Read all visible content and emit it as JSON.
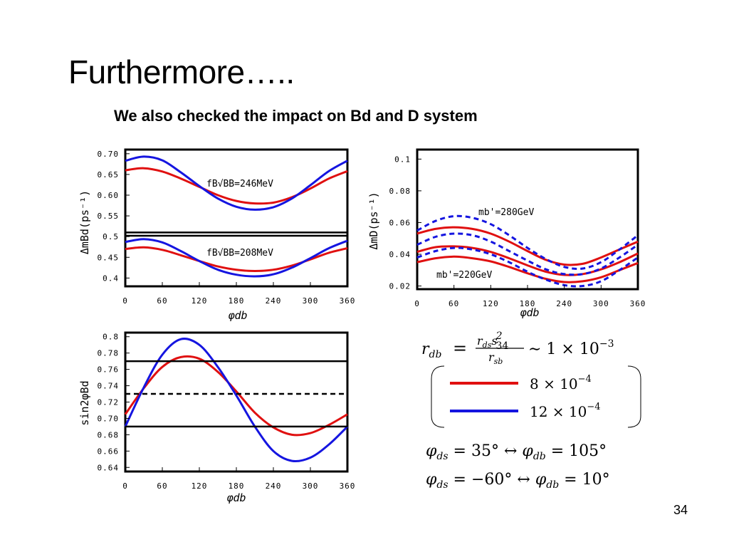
{
  "slide": {
    "title": "Furthermore…..",
    "subtitle": "We also checked the impact on  Bd and D system",
    "page_number": "34"
  },
  "colors": {
    "red": "#e01010",
    "blue": "#1515e0",
    "black": "#000000"
  },
  "chart_data": [
    {
      "type": "line",
      "title": "",
      "xlabel": "φdb",
      "ylabel": "ΔmBd(ps⁻¹)",
      "xlim": [
        0,
        360
      ],
      "ylim": [
        0.38,
        0.71
      ],
      "xticks": [
        "0",
        "60",
        "120",
        "180",
        "240",
        "300",
        "360"
      ],
      "yticks": [
        "0.70",
        "0.65",
        "0.60",
        "0.55",
        "0.5",
        "0.45",
        "0.4"
      ],
      "annotations": [
        "fB√BB=246MeV",
        "fB√BB=208MeV"
      ],
      "series": [
        {
          "color": "red",
          "style": "solid",
          "x": [
            0,
            30,
            60,
            90,
            120,
            150,
            180,
            210,
            240,
            270,
            300,
            330,
            360
          ],
          "y": [
            0.66,
            0.665,
            0.657,
            0.64,
            0.62,
            0.6,
            0.586,
            0.58,
            0.582,
            0.595,
            0.616,
            0.64,
            0.658
          ]
        },
        {
          "color": "blue",
          "style": "solid",
          "x": [
            0,
            30,
            60,
            90,
            120,
            150,
            180,
            210,
            240,
            270,
            300,
            330,
            360
          ],
          "y": [
            0.683,
            0.693,
            0.684,
            0.655,
            0.622,
            0.592,
            0.572,
            0.565,
            0.571,
            0.592,
            0.624,
            0.658,
            0.683
          ]
        },
        {
          "color": "red",
          "style": "solid",
          "x": [
            0,
            30,
            60,
            90,
            120,
            150,
            180,
            210,
            240,
            270,
            300,
            330,
            360
          ],
          "y": [
            0.47,
            0.474,
            0.468,
            0.455,
            0.441,
            0.428,
            0.42,
            0.417,
            0.42,
            0.43,
            0.445,
            0.461,
            0.472
          ]
        },
        {
          "color": "blue",
          "style": "solid",
          "x": [
            0,
            30,
            60,
            90,
            120,
            150,
            180,
            210,
            240,
            270,
            300,
            330,
            360
          ],
          "y": [
            0.487,
            0.494,
            0.486,
            0.465,
            0.441,
            0.42,
            0.408,
            0.404,
            0.409,
            0.425,
            0.448,
            0.472,
            0.49
          ]
        },
        {
          "color": "black",
          "style": "solid",
          "x": [
            0,
            360
          ],
          "y": [
            0.51,
            0.51
          ]
        },
        {
          "color": "black",
          "style": "solid",
          "x": [
            0,
            360
          ],
          "y": [
            0.502,
            0.502
          ]
        }
      ]
    },
    {
      "type": "line",
      "title": "",
      "xlabel": "φdb",
      "ylabel": "ΔmD(ps⁻¹)",
      "xlim": [
        0,
        360
      ],
      "ylim": [
        0.018,
        0.106
      ],
      "xticks": [
        "0",
        "60",
        "120",
        "180",
        "240",
        "300",
        "360"
      ],
      "yticks": [
        "0.1",
        "0.08",
        "0.06",
        "0.04",
        "0.02"
      ],
      "annotations": [
        "mb'=280GeV",
        "mb'=220GeV"
      ],
      "series": [
        {
          "color": "red",
          "style": "solid",
          "x": [
            0,
            30,
            60,
            90,
            120,
            150,
            180,
            210,
            240,
            270,
            300,
            330,
            360
          ],
          "y": [
            0.053,
            0.056,
            0.057,
            0.056,
            0.053,
            0.048,
            0.042,
            0.0365,
            0.0335,
            0.034,
            0.038,
            0.043,
            0.048
          ]
        },
        {
          "color": "red",
          "style": "solid",
          "x": [
            0,
            30,
            60,
            90,
            120,
            150,
            180,
            210,
            240,
            270,
            300,
            330,
            360
          ],
          "y": [
            0.0415,
            0.0445,
            0.045,
            0.044,
            0.0415,
            0.0375,
            0.033,
            0.029,
            0.027,
            0.0275,
            0.0305,
            0.035,
            0.0405
          ]
        },
        {
          "color": "red",
          "style": "solid",
          "x": [
            0,
            30,
            60,
            90,
            120,
            150,
            180,
            210,
            240,
            270,
            300,
            330,
            360
          ],
          "y": [
            0.035,
            0.0375,
            0.0385,
            0.0375,
            0.0355,
            0.032,
            0.028,
            0.0245,
            0.0225,
            0.023,
            0.0255,
            0.03,
            0.0345
          ]
        },
        {
          "color": "blue",
          "style": "dashed",
          "x": [
            0,
            30,
            60,
            90,
            120,
            150,
            180,
            210,
            240,
            270,
            300,
            330,
            360
          ],
          "y": [
            0.055,
            0.061,
            0.064,
            0.063,
            0.059,
            0.052,
            0.044,
            0.037,
            0.032,
            0.031,
            0.035,
            0.043,
            0.052
          ]
        },
        {
          "color": "blue",
          "style": "dashed",
          "x": [
            0,
            30,
            60,
            90,
            120,
            150,
            180,
            210,
            240,
            270,
            300,
            330,
            360
          ],
          "y": [
            0.046,
            0.051,
            0.053,
            0.052,
            0.048,
            0.042,
            0.036,
            0.0305,
            0.0275,
            0.0275,
            0.031,
            0.038,
            0.046
          ]
        },
        {
          "color": "blue",
          "style": "dashed",
          "x": [
            0,
            30,
            60,
            90,
            120,
            150,
            180,
            210,
            240,
            270,
            300,
            330,
            360
          ],
          "y": [
            0.038,
            0.042,
            0.044,
            0.043,
            0.04,
            0.035,
            0.029,
            0.024,
            0.0205,
            0.02,
            0.023,
            0.03,
            0.038
          ]
        }
      ]
    },
    {
      "type": "line",
      "title": "",
      "xlabel": "φdb",
      "ylabel": "sin2φBd",
      "xlim": [
        0,
        360
      ],
      "ylim": [
        0.635,
        0.805
      ],
      "xticks": [
        "0",
        "60",
        "120",
        "180",
        "240",
        "300",
        "360"
      ],
      "yticks": [
        "0.8",
        "0.78",
        "0.76",
        "0.74",
        "0.72",
        "0.70",
        "0.68",
        "0.66",
        "0.64"
      ],
      "series": [
        {
          "color": "red",
          "style": "solid",
          "x": [
            0,
            30,
            60,
            90,
            120,
            150,
            180,
            210,
            240,
            270,
            300,
            330,
            360
          ],
          "y": [
            0.705,
            0.737,
            0.763,
            0.775,
            0.773,
            0.757,
            0.733,
            0.707,
            0.689,
            0.68,
            0.682,
            0.692,
            0.705
          ]
        },
        {
          "color": "blue",
          "style": "solid",
          "x": [
            0,
            30,
            60,
            90,
            120,
            150,
            180,
            210,
            240,
            270,
            300,
            330,
            360
          ],
          "y": [
            0.69,
            0.738,
            0.778,
            0.797,
            0.79,
            0.763,
            0.728,
            0.69,
            0.66,
            0.648,
            0.652,
            0.668,
            0.69
          ]
        },
        {
          "color": "black",
          "style": "solid",
          "x": [
            0,
            360
          ],
          "y": [
            0.77,
            0.77
          ]
        },
        {
          "color": "black",
          "style": "dashed",
          "x": [
            0,
            360
          ],
          "y": [
            0.73,
            0.73
          ]
        },
        {
          "color": "black",
          "style": "solid",
          "x": [
            0,
            360
          ],
          "y": [
            0.69,
            0.69
          ]
        }
      ]
    }
  ],
  "legend": {
    "formula": {
      "lhs": "r",
      "lhs_sub": "db",
      "num": "r",
      "num_sub": "ds",
      "num_s": "s",
      "num_s_sup": "2",
      "num_s_sub": "34",
      "den": "r",
      "den_sub": "sb",
      "rhs": "∼ 1 × 10",
      "rhs_exp": "−3"
    },
    "entries": [
      {
        "color": "red",
        "label": "8 × 10",
        "exp": "−4"
      },
      {
        "color": "blue",
        "label": "12 × 10",
        "exp": "−4"
      }
    ],
    "relations": [
      {
        "a": "φ",
        "a_sub": "ds",
        "a_val": " = 35° ↔ ",
        "b": "φ",
        "b_sub": "db",
        "b_val": " = 105°"
      },
      {
        "a": "φ",
        "a_sub": "ds",
        "a_val": " = −60° ↔ ",
        "b": "φ",
        "b_sub": "db",
        "b_val": " = 10°"
      }
    ]
  }
}
